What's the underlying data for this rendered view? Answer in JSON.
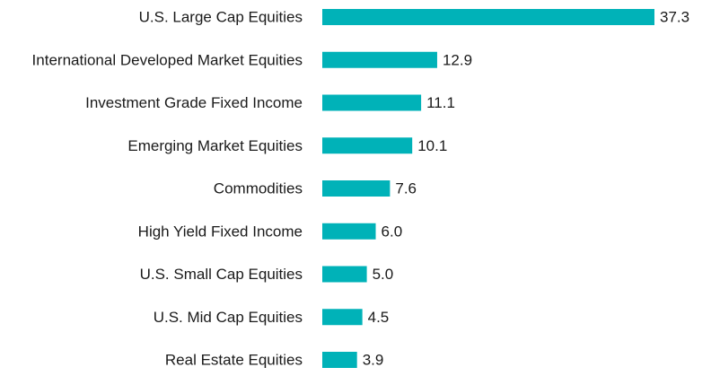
{
  "chart_data": {
    "type": "bar",
    "orientation": "horizontal",
    "categories": [
      "U.S. Large Cap Equities",
      "International Developed Market Equities",
      "Investment Grade Fixed Income",
      "Emerging Market Equities",
      "Commodities",
      "High Yield Fixed Income",
      "U.S. Small Cap Equities",
      "U.S. Mid Cap Equities",
      "Real Estate Equities"
    ],
    "values": [
      37.3,
      12.9,
      11.1,
      10.1,
      7.6,
      6.0,
      5.0,
      4.5,
      3.9
    ],
    "value_labels": [
      "37.3",
      "12.9",
      "11.1",
      "10.1",
      "7.6",
      "6.0",
      "5.0",
      "4.5",
      "3.9"
    ],
    "xlim": [
      0,
      37.3
    ],
    "grid": false,
    "legend": "none",
    "colors": {
      "bar": "#00b2b8",
      "text": "#1a1a1a"
    }
  }
}
